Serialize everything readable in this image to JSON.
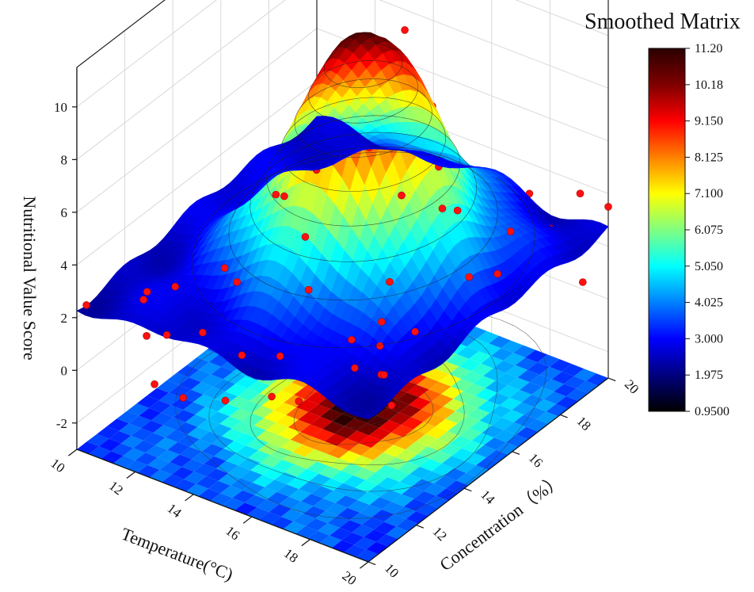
{
  "chart_data": {
    "type": "3d-surface",
    "title": "Smoothed Matrix",
    "xlabel": "Temperature(°C)",
    "ylabel": "Concentration（%）",
    "zlabel": "Nutritional Value Score",
    "x_ticks": [
      "10",
      "12",
      "14",
      "16",
      "18",
      "20"
    ],
    "y_ticks": [
      "10",
      "12",
      "14",
      "16",
      "18",
      "20"
    ],
    "z_ticks": [
      "-2",
      "0",
      "2",
      "4",
      "6",
      "8",
      "10"
    ],
    "xlim": [
      10,
      20
    ],
    "ylim": [
      10,
      20
    ],
    "zlim": [
      -3,
      11.5
    ],
    "colorbar": {
      "min": 0.95,
      "max": 11.2,
      "labels": [
        "11.20",
        "10.18",
        "9.150",
        "8.125",
        "7.100",
        "6.075",
        "5.050",
        "4.025",
        "3.000",
        "1.975",
        "0.9500"
      ],
      "colors": [
        "#000000",
        "#00007f",
        "#0000ff",
        "#0080ff",
        "#00ffff",
        "#80ff80",
        "#ffff00",
        "#ff8000",
        "#ff0000",
        "#7f0000",
        "#2a0000"
      ]
    },
    "surface_model": {
      "peak_center": [
        15.3,
        15.5
      ],
      "peak_height": 11.2,
      "baseline": 2.5,
      "spread": 1.9
    },
    "scatter_points": [
      [
        10.0,
        10.4,
        2.2
      ],
      [
        10.5,
        10.3,
        2.6
      ],
      [
        10.6,
        12.2,
        1.7
      ],
      [
        11.0,
        11.0,
        3.2
      ],
      [
        11.4,
        12.4,
        2.1
      ],
      [
        11.3,
        11.2,
        2.4
      ],
      [
        12.6,
        13.0,
        2.9
      ],
      [
        12.2,
        14.0,
        1.5
      ],
      [
        13.0,
        15.0,
        4.4
      ],
      [
        13.7,
        13.8,
        5.6
      ],
      [
        14.3,
        14.3,
        3.9
      ],
      [
        14.6,
        14.4,
        6.5
      ],
      [
        15.2,
        15.1,
        10.6
      ],
      [
        15.5,
        15.6,
        10.1
      ],
      [
        15.0,
        14.7,
        9.8
      ],
      [
        15.1,
        15.4,
        8.8
      ],
      [
        15.9,
        16.5,
        10.9
      ],
      [
        16.6,
        16.8,
        8.1
      ],
      [
        16.2,
        16.0,
        5.1
      ],
      [
        16.0,
        14.9,
        7.6
      ],
      [
        16.9,
        16.7,
        6.0
      ],
      [
        17.3,
        17.0,
        4.3
      ],
      [
        17.6,
        16.0,
        5.2
      ],
      [
        18.1,
        18.3,
        3.7
      ],
      [
        17.8,
        18.6,
        2.6
      ],
      [
        18.2,
        18.9,
        4.0
      ],
      [
        18.5,
        19.5,
        2.6
      ],
      [
        19.2,
        19.8,
        3.8
      ],
      [
        19.7,
        19.3,
        1.0
      ],
      [
        20.0,
        20.0,
        3.5
      ],
      [
        16.7,
        14.9,
        2.8
      ],
      [
        17.0,
        14.2,
        1.9
      ],
      [
        17.6,
        13.4,
        1.8
      ],
      [
        18.4,
        12.6,
        1.6
      ],
      [
        18.8,
        12.0,
        2.2
      ],
      [
        19.4,
        11.7,
        1.5
      ],
      [
        15.4,
        13.1,
        3.2
      ],
      [
        15.0,
        12.4,
        1.0
      ],
      [
        14.1,
        11.9,
        1.0
      ],
      [
        13.0,
        11.6,
        1.6
      ],
      [
        12.1,
        11.2,
        1.4
      ],
      [
        11.9,
        10.6,
        1.7
      ],
      [
        16.3,
        13.8,
        1.2
      ],
      [
        16.9,
        13.2,
        0.8
      ],
      [
        17.9,
        14.5,
        1.7
      ],
      [
        18.6,
        15.9,
        3.1
      ],
      [
        19.0,
        16.6,
        2.9
      ],
      [
        13.4,
        10.3,
        0.2
      ],
      [
        12.5,
        10.2,
        0.4
      ],
      [
        14.6,
        10.6,
        0.4
      ],
      [
        15.7,
        11.2,
        0.6
      ],
      [
        16.3,
        11.6,
        0.4
      ]
    ]
  }
}
